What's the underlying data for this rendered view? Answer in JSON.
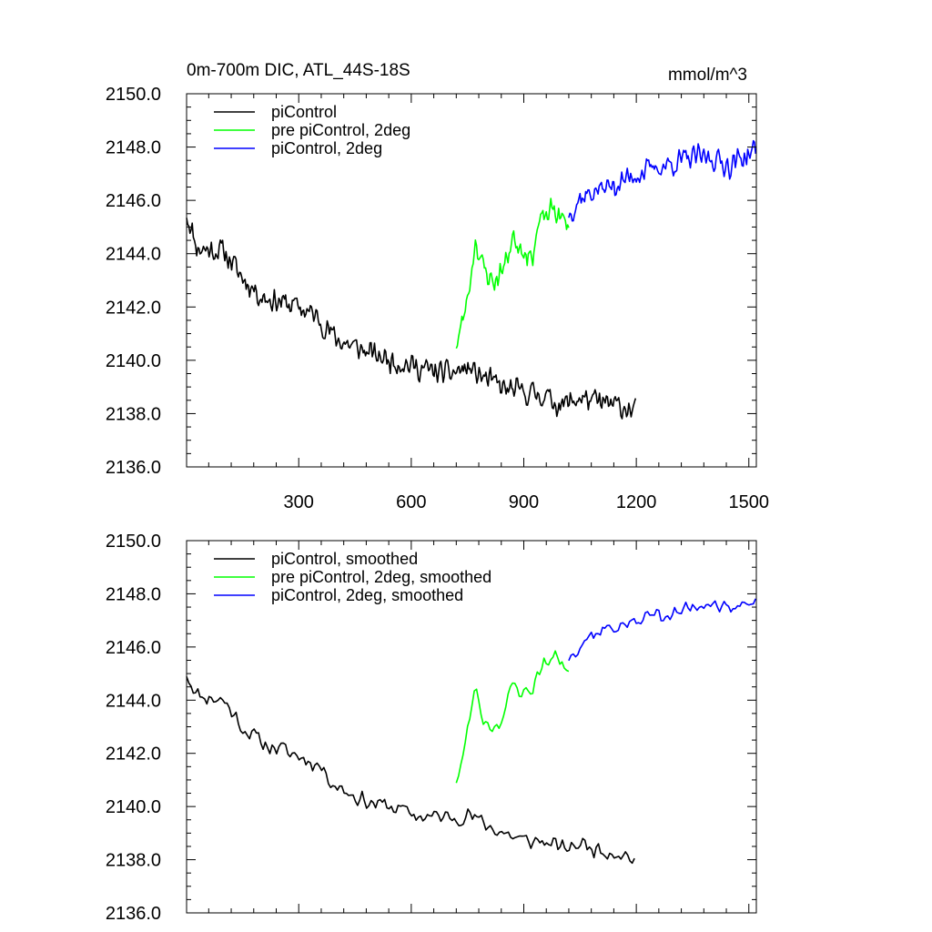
{
  "chart_data": [
    {
      "type": "line",
      "title_left": "0m-700m DIC, ATL_44S-18S",
      "title_right": "mmol/m^3",
      "xlabel": "",
      "ylabel": "",
      "xlim": [
        1,
        1520
      ],
      "ylim": [
        2136.0,
        2150.0
      ],
      "x_ticks": [
        300,
        600,
        900,
        1200,
        1500
      ],
      "y_ticks": [
        2136.0,
        2138.0,
        2140.0,
        2142.0,
        2144.0,
        2146.0,
        2148.0,
        2150.0
      ],
      "y_tick_labels": [
        "2136.0",
        "2138.0",
        "2140.0",
        "2142.0",
        "2144.0",
        "2146.0",
        "2148.0",
        "2150.0"
      ],
      "x_tick_labels": [
        "300",
        "600",
        "900",
        "1200",
        "1500"
      ],
      "legend": {
        "placement": "top-left"
      },
      "series": [
        {
          "name": "piControl",
          "color": "#000000",
          "x_start": 1,
          "x_end": 1200,
          "step": 3,
          "anchors": [
            [
              1,
              2145.5
            ],
            [
              30,
              2144.2
            ],
            [
              100,
              2144.1
            ],
            [
              150,
              2143.1
            ],
            [
              200,
              2142.4
            ],
            [
              300,
              2142.0
            ],
            [
              350,
              2141.6
            ],
            [
              400,
              2140.8
            ],
            [
              450,
              2140.5
            ],
            [
              500,
              2140.2
            ],
            [
              550,
              2140.0
            ],
            [
              600,
              2139.8
            ],
            [
              650,
              2139.6
            ],
            [
              700,
              2139.5
            ],
            [
              750,
              2139.7
            ],
            [
              800,
              2139.3
            ],
            [
              850,
              2138.9
            ],
            [
              900,
              2138.8
            ],
            [
              950,
              2138.7
            ],
            [
              1000,
              2138.3
            ],
            [
              1050,
              2138.6
            ],
            [
              1100,
              2138.4
            ],
            [
              1150,
              2138.3
            ],
            [
              1200,
              2138.1
            ]
          ],
          "noise": 0.55,
          "seed": 11
        },
        {
          "name": "pre piControl, 2deg",
          "color": "#00ff00",
          "x_start": 720,
          "x_end": 1020,
          "step": 3,
          "anchors": [
            [
              720,
              2140.6
            ],
            [
              740,
              2141.6
            ],
            [
              760,
              2143.2
            ],
            [
              770,
              2144.6
            ],
            [
              790,
              2143.5
            ],
            [
              820,
              2142.9
            ],
            [
              850,
              2143.6
            ],
            [
              870,
              2144.6
            ],
            [
              900,
              2144.2
            ],
            [
              920,
              2143.8
            ],
            [
              940,
              2145.1
            ],
            [
              980,
              2145.7
            ],
            [
              1000,
              2145.3
            ],
            [
              1020,
              2145.0
            ]
          ],
          "noise": 0.55,
          "seed": 23
        },
        {
          "name": "piControl, 2deg",
          "color": "#0000ff",
          "x_start": 1020,
          "x_end": 1520,
          "step": 3,
          "anchors": [
            [
              1020,
              2145.5
            ],
            [
              1050,
              2146.1
            ],
            [
              1100,
              2146.4
            ],
            [
              1150,
              2146.6
            ],
            [
              1200,
              2147.0
            ],
            [
              1250,
              2147.2
            ],
            [
              1300,
              2147.4
            ],
            [
              1350,
              2147.6
            ],
            [
              1400,
              2147.6
            ],
            [
              1450,
              2147.3
            ],
            [
              1480,
              2147.6
            ],
            [
              1520,
              2147.9
            ]
          ],
          "noise": 0.55,
          "seed": 37
        }
      ]
    },
    {
      "type": "line",
      "title_left": "",
      "title_right": "",
      "xlabel": "",
      "ylabel": "",
      "xlim": [
        1,
        1520
      ],
      "ylim": [
        2136.0,
        2150.0
      ],
      "x_ticks": [
        300,
        600,
        900,
        1200,
        1500
      ],
      "y_ticks": [
        2136.0,
        2138.0,
        2140.0,
        2142.0,
        2144.0,
        2146.0,
        2148.0,
        2150.0
      ],
      "y_tick_labels": [
        "2136.0",
        "2138.0",
        "2140.0",
        "2142.0",
        "2144.0",
        "2146.0",
        "2148.0",
        "2150.0"
      ],
      "legend": {
        "placement": "top-left"
      },
      "series": [
        {
          "name": "piControl, smoothed",
          "color": "#000000",
          "x_start": 1,
          "x_end": 1200,
          "step": 6,
          "anchors": [
            [
              1,
              2145.0
            ],
            [
              30,
              2144.2
            ],
            [
              100,
              2144.0
            ],
            [
              150,
              2143.0
            ],
            [
              200,
              2142.4
            ],
            [
              300,
              2141.9
            ],
            [
              350,
              2141.6
            ],
            [
              400,
              2140.8
            ],
            [
              450,
              2140.4
            ],
            [
              500,
              2140.1
            ],
            [
              550,
              2140.0
            ],
            [
              600,
              2139.7
            ],
            [
              650,
              2139.6
            ],
            [
              700,
              2139.6
            ],
            [
              750,
              2139.7
            ],
            [
              800,
              2139.3
            ],
            [
              850,
              2139.0
            ],
            [
              900,
              2138.7
            ],
            [
              950,
              2138.7
            ],
            [
              1000,
              2138.4
            ],
            [
              1050,
              2138.6
            ],
            [
              1100,
              2138.4
            ],
            [
              1150,
              2138.3
            ],
            [
              1200,
              2138.0
            ]
          ],
          "noise": 0.4,
          "seed": 11
        },
        {
          "name": "pre piControl, 2deg, smoothed",
          "color": "#00ff00",
          "x_start": 720,
          "x_end": 1020,
          "step": 6,
          "anchors": [
            [
              720,
              2141.0
            ],
            [
              740,
              2142.0
            ],
            [
              760,
              2143.6
            ],
            [
              770,
              2144.6
            ],
            [
              790,
              2143.3
            ],
            [
              820,
              2143.0
            ],
            [
              850,
              2143.5
            ],
            [
              870,
              2144.6
            ],
            [
              900,
              2144.3
            ],
            [
              920,
              2144.3
            ],
            [
              940,
              2145.2
            ],
            [
              980,
              2145.6
            ],
            [
              1000,
              2145.6
            ],
            [
              1020,
              2145.0
            ]
          ],
          "noise": 0.4,
          "seed": 23
        },
        {
          "name": "piControl, 2deg, smoothed",
          "color": "#0000ff",
          "x_start": 1020,
          "x_end": 1520,
          "step": 6,
          "anchors": [
            [
              1020,
              2145.6
            ],
            [
              1050,
              2146.2
            ],
            [
              1100,
              2146.6
            ],
            [
              1150,
              2146.8
            ],
            [
              1200,
              2146.9
            ],
            [
              1250,
              2147.3
            ],
            [
              1300,
              2147.2
            ],
            [
              1350,
              2147.5
            ],
            [
              1400,
              2147.8
            ],
            [
              1450,
              2147.2
            ],
            [
              1480,
              2147.6
            ],
            [
              1520,
              2147.9
            ]
          ],
          "noise": 0.4,
          "seed": 37
        }
      ]
    }
  ]
}
